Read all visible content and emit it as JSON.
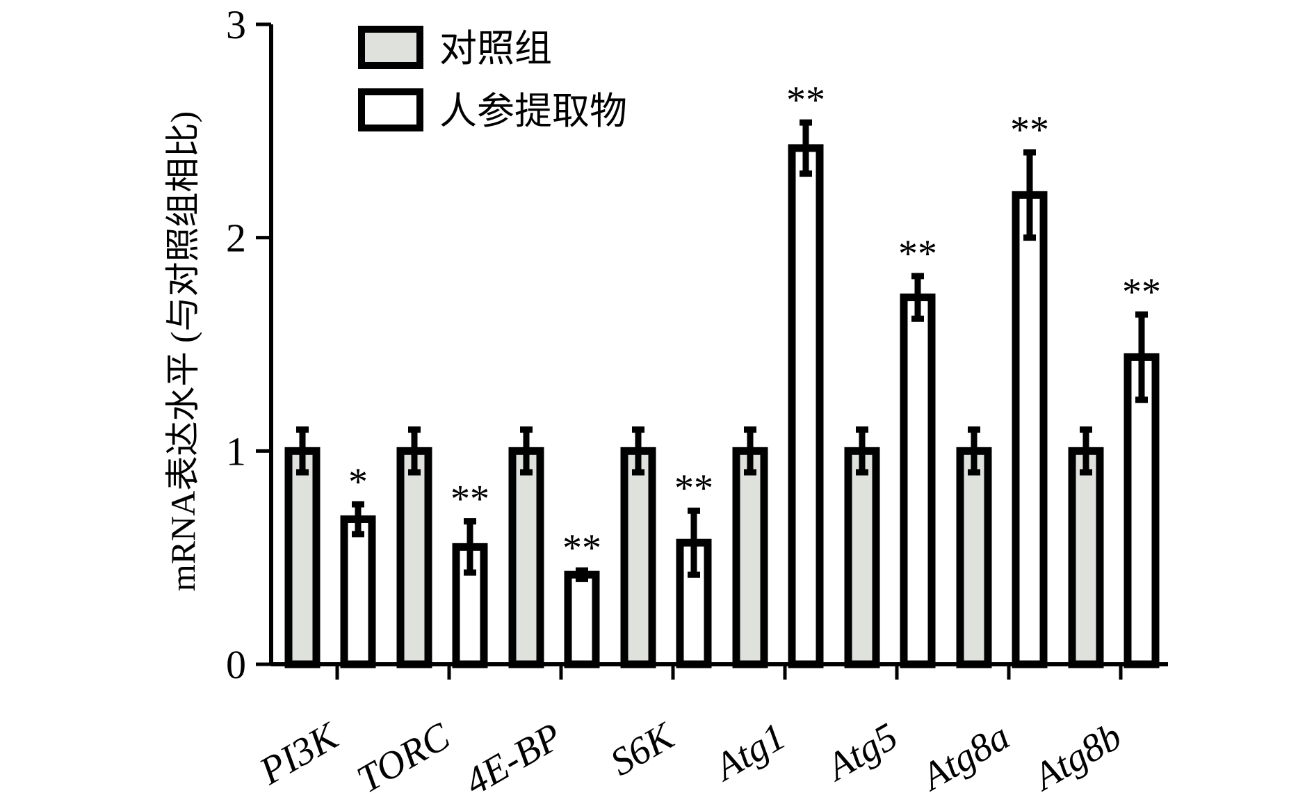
{
  "chart_data": {
    "type": "bar",
    "title": "",
    "xlabel": "",
    "ylabel": "mRNA表达水平 (与对照组相比)",
    "ylim": [
      0,
      3
    ],
    "yticks": [
      "0",
      "1",
      "2",
      "3"
    ],
    "categories": [
      "PI3K",
      "TORC",
      "4E-BP",
      "S6K",
      "Atg1",
      "Atg5",
      "Atg8a",
      "Atg8b"
    ],
    "legend": {
      "position": "top-left"
    },
    "series": [
      {
        "name": "对照组",
        "color": "#dfe1dc",
        "values": [
          1.0,
          1.0,
          1.0,
          1.0,
          1.0,
          1.0,
          1.0,
          1.0
        ],
        "errors": [
          0.1,
          0.1,
          0.1,
          0.1,
          0.1,
          0.1,
          0.1,
          0.1
        ],
        "significance": [
          "",
          "",
          "",
          "",
          "",
          "",
          "",
          ""
        ]
      },
      {
        "name": "人参提取物",
        "color": "#ffffff",
        "values": [
          0.68,
          0.55,
          0.42,
          0.57,
          2.42,
          1.72,
          2.2,
          1.44
        ],
        "errors": [
          0.07,
          0.12,
          0.02,
          0.15,
          0.12,
          0.1,
          0.2,
          0.2
        ],
        "significance": [
          "*",
          "**",
          "**",
          "**",
          "**",
          "**",
          "**",
          "**"
        ]
      }
    ]
  }
}
